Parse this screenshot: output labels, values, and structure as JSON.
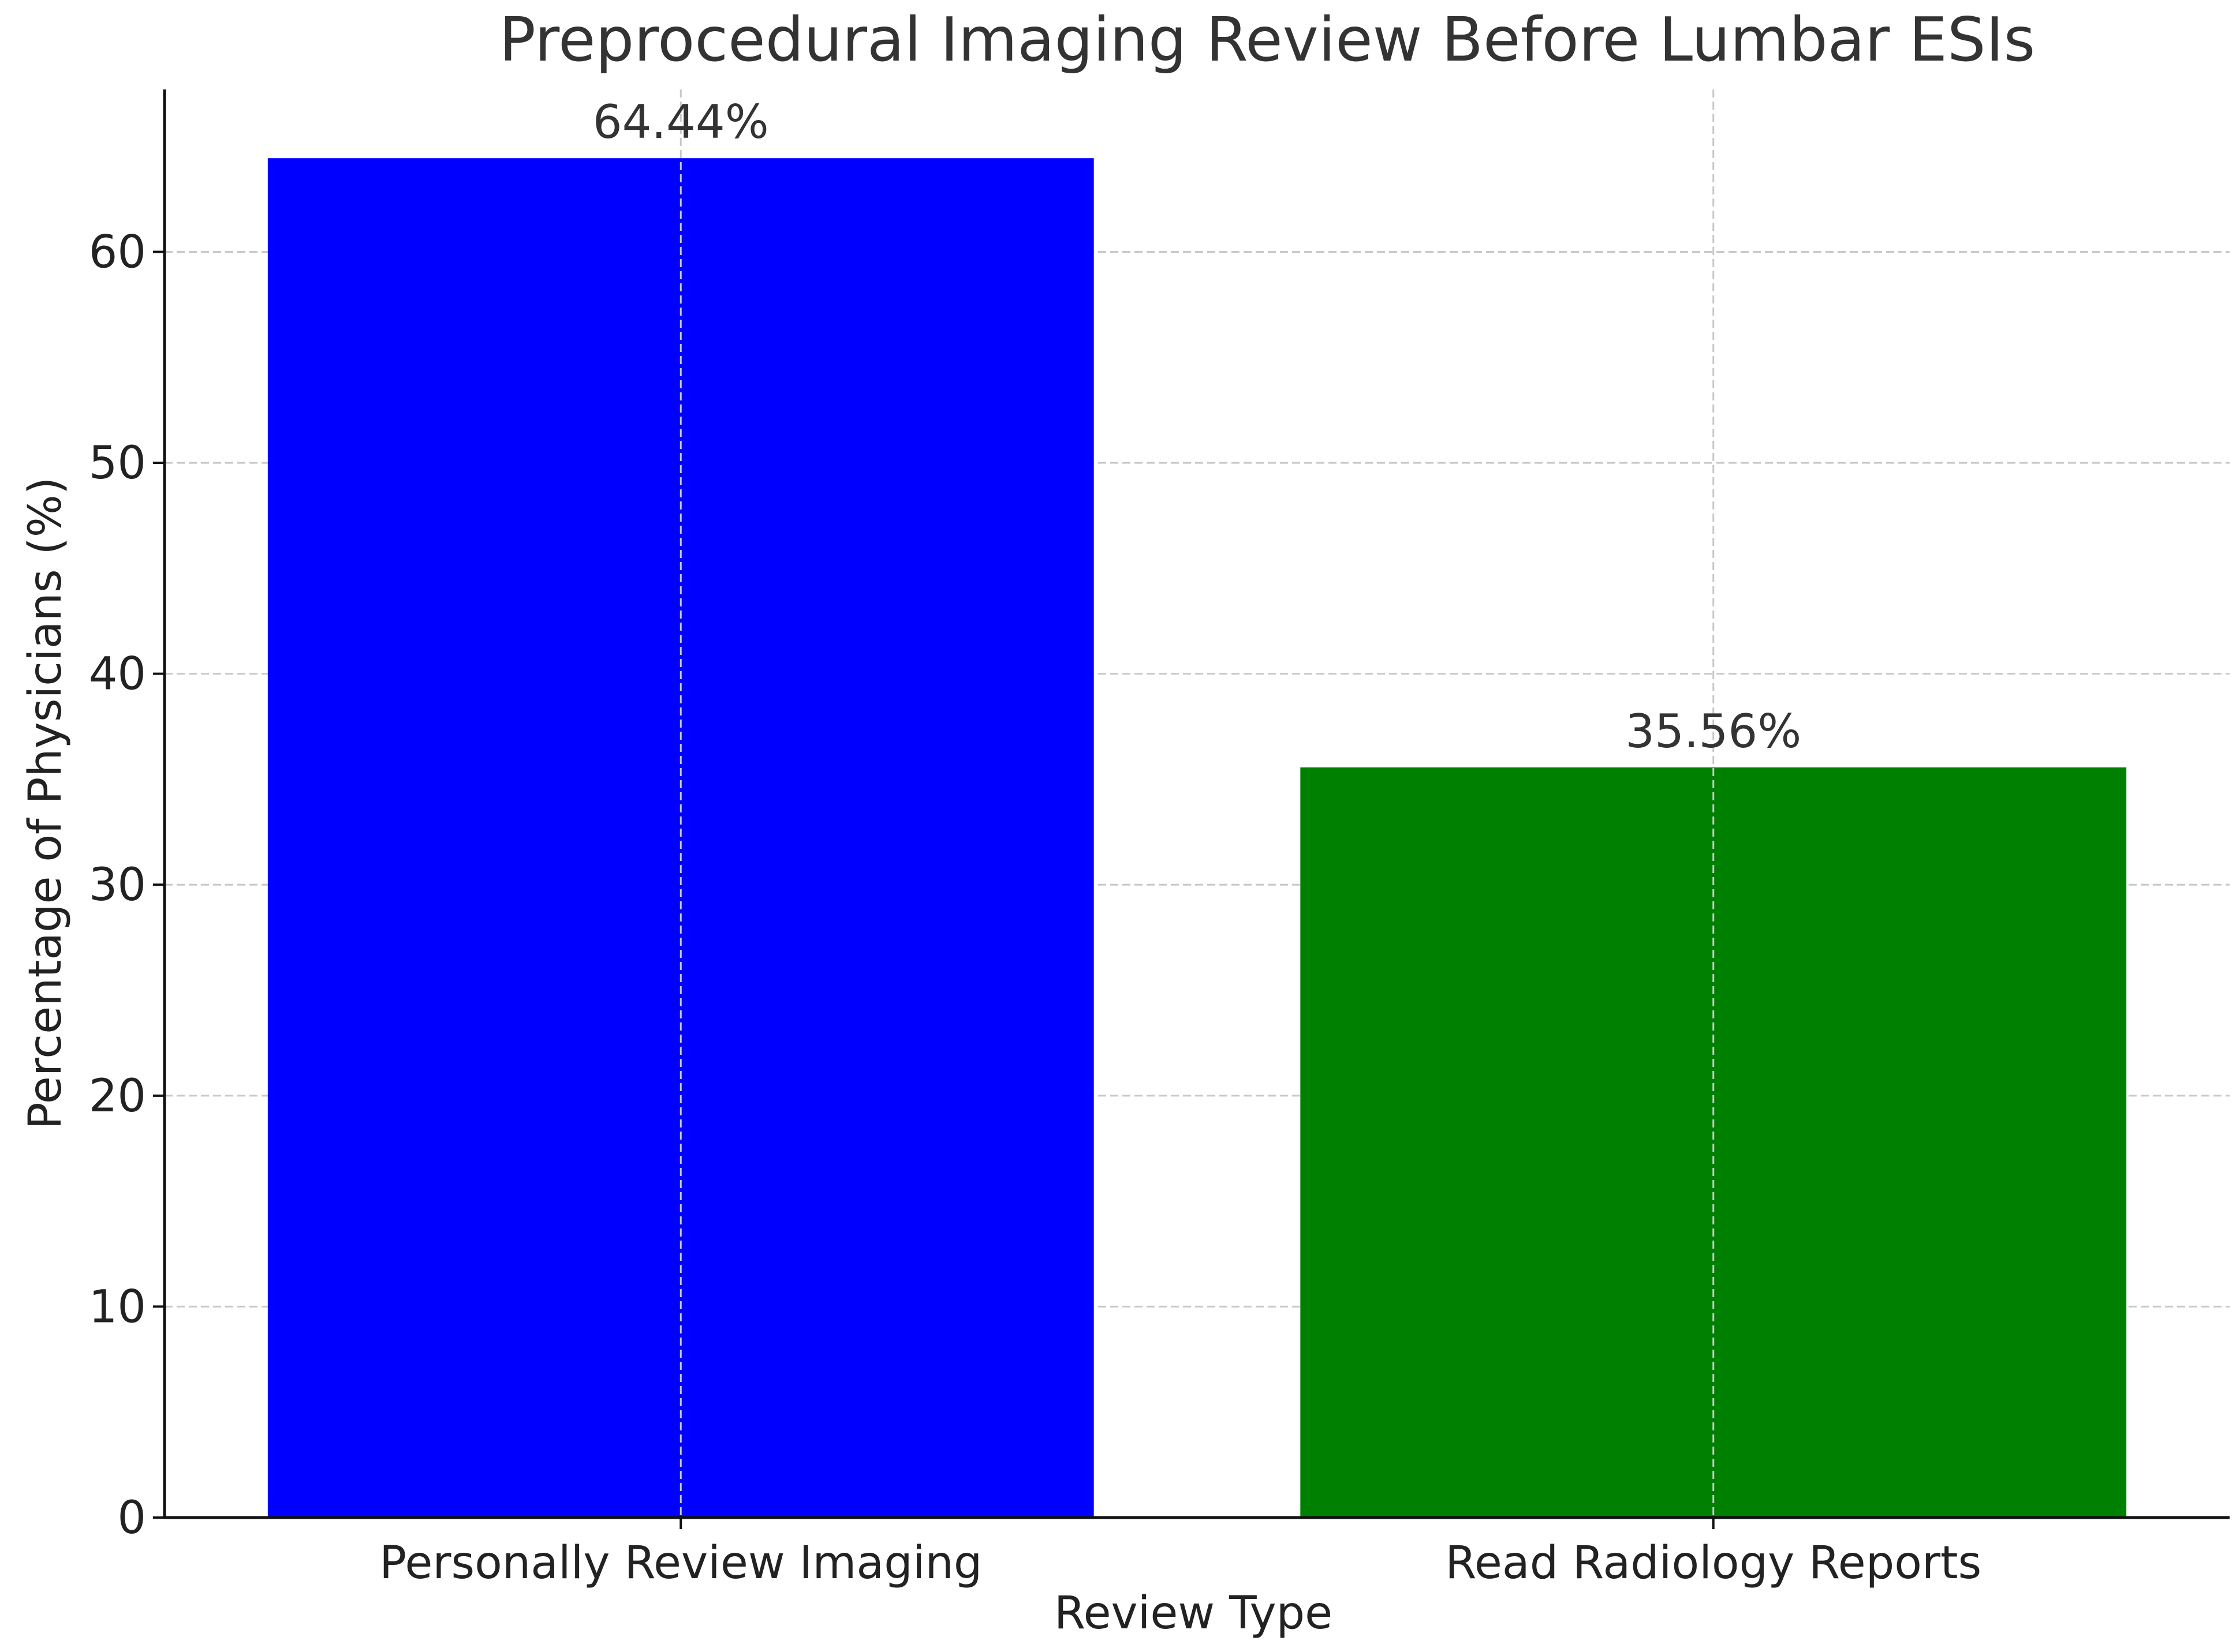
{
  "chart_data": {
    "type": "bar",
    "title": "Preprocedural Imaging Review Before Lumbar ESIs",
    "xlabel": "Review Type",
    "ylabel": "Percentage of Physicians (%)",
    "categories": [
      "Personally Review Imaging",
      "Read Radiology Reports"
    ],
    "values": [
      64.44,
      35.56
    ],
    "value_labels": [
      "64.44%",
      "35.56%"
    ],
    "colors": [
      "#0000ff",
      "#008000"
    ],
    "ylim": [
      0,
      67.7
    ],
    "yticks": [
      0,
      10,
      20,
      30,
      40,
      50,
      60
    ],
    "ytick_labels": [
      "0",
      "10",
      "20",
      "30",
      "40",
      "50",
      "60"
    ],
    "grid": true
  }
}
